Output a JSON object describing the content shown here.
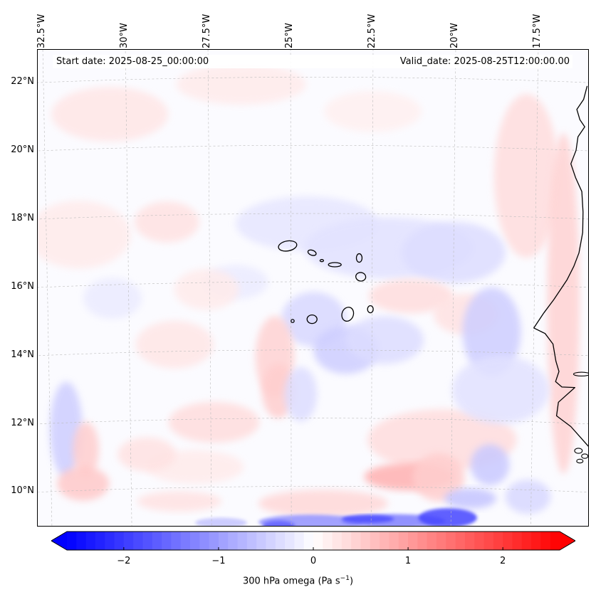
{
  "map": {
    "projection": "rotated lat-lon (curved graticule)",
    "extent": {
      "lon_west": -32.8,
      "lon_east": -15.8,
      "lat_south": 8.8,
      "lat_north": 22.8
    },
    "start_date_label": "Start date: 2025-08-25_00:00:00",
    "valid_date_label": "Valid_date: 2025-08-25T12:00:00.00",
    "field": "300 hPa omega",
    "colormap": "bwr",
    "coastline_color": "#000000",
    "gridline_color": "#bbbbbb",
    "longitude_ticks": [
      {
        "value": -32.5,
        "label": "32.5°W"
      },
      {
        "value": -30,
        "label": "30°W"
      },
      {
        "value": -27.5,
        "label": "27.5°W"
      },
      {
        "value": -25,
        "label": "25°W"
      },
      {
        "value": -22.5,
        "label": "22.5°W"
      },
      {
        "value": -20,
        "label": "20°W"
      },
      {
        "value": -17.5,
        "label": "17.5°W"
      }
    ],
    "latitude_ticks": [
      {
        "value": 22,
        "label": "22°N"
      },
      {
        "value": 20,
        "label": "20°N"
      },
      {
        "value": 18,
        "label": "18°N"
      },
      {
        "value": 16,
        "label": "16°N"
      },
      {
        "value": 14,
        "label": "14°N"
      },
      {
        "value": 12,
        "label": "12°N"
      },
      {
        "value": 10,
        "label": "10°N"
      }
    ],
    "features": [
      {
        "name": "West African coast (Mauritania / Senegal / Gambia / Guinea-Bissau)"
      },
      {
        "name": "Cape Verde islands"
      },
      {
        "name": "Strong ascent band (negative omega) near 9°N, 20-25°W"
      }
    ]
  },
  "colorbar": {
    "vmin": -2.6,
    "vmax": 2.6,
    "extend": "both",
    "ticks": [
      {
        "value": -2,
        "label": "−2"
      },
      {
        "value": -1,
        "label": "−1"
      },
      {
        "value": 0,
        "label": "0"
      },
      {
        "value": 1,
        "label": "1"
      },
      {
        "value": 2,
        "label": "2"
      }
    ],
    "label_text": "300 hPa omega (Pa s",
    "label_exponent": "−1",
    "label_close": ")",
    "min_color": "#0000ff",
    "mid_color": "#ffffff",
    "max_color": "#ff0000"
  }
}
